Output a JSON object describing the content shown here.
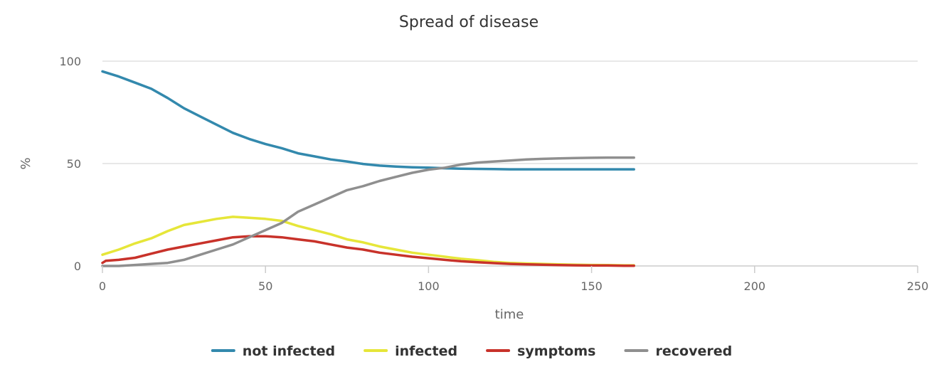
{
  "chart_data": {
    "type": "line",
    "title": "Spread of disease",
    "xlabel": "time",
    "ylabel": "%",
    "xlim": [
      0,
      250
    ],
    "ylim": [
      0,
      100
    ],
    "xticks": [
      0,
      50,
      100,
      150,
      200,
      250
    ],
    "yticks": [
      0,
      50,
      100
    ],
    "grid": "horizontal",
    "legend_position": "bottom",
    "series": [
      {
        "name": "not infected",
        "color": "#3389ad",
        "x": [
          0,
          5,
          10,
          15,
          20,
          25,
          30,
          35,
          40,
          45,
          50,
          55,
          60,
          65,
          70,
          75,
          80,
          85,
          90,
          95,
          100,
          105,
          110,
          115,
          120,
          125,
          130,
          135,
          140,
          145,
          150,
          155,
          160,
          163
        ],
        "y": [
          95,
          92.5,
          89.5,
          86.5,
          82,
          77,
          73,
          69,
          65,
          62,
          59.5,
          57.5,
          55,
          53.5,
          52,
          51,
          49.8,
          49,
          48.5,
          48.2,
          48,
          47.7,
          47.5,
          47.4,
          47.3,
          47.2,
          47.2,
          47.2,
          47.2,
          47.2,
          47.2,
          47.2,
          47.2,
          47.2
        ]
      },
      {
        "name": "infected",
        "color": "#e6e639",
        "x": [
          0,
          5,
          10,
          15,
          20,
          25,
          30,
          35,
          40,
          45,
          50,
          55,
          60,
          65,
          70,
          75,
          80,
          85,
          90,
          95,
          100,
          105,
          110,
          115,
          120,
          125,
          130,
          135,
          140,
          145,
          150,
          155,
          160,
          163
        ],
        "y": [
          5.5,
          8,
          11,
          13.5,
          17,
          20,
          21.5,
          23,
          24,
          23.5,
          23,
          22,
          19.5,
          17.5,
          15.5,
          13,
          11.5,
          9.5,
          8,
          6.5,
          5.5,
          4.5,
          3.5,
          2.8,
          2,
          1.5,
          1.2,
          1,
          0.8,
          0.6,
          0.5,
          0.4,
          0.3,
          0.3
        ]
      },
      {
        "name": "symptoms",
        "color": "#c8322a",
        "x": [
          0,
          1,
          5,
          10,
          15,
          20,
          25,
          30,
          35,
          40,
          45,
          50,
          55,
          60,
          65,
          70,
          75,
          80,
          85,
          90,
          95,
          100,
          105,
          110,
          115,
          120,
          125,
          130,
          135,
          140,
          145,
          150,
          155,
          160,
          163
        ],
        "y": [
          1.5,
          2.5,
          3,
          4,
          6,
          8,
          9.5,
          11,
          12.5,
          14,
          14.5,
          14.5,
          14,
          13,
          12,
          10.5,
          9,
          8,
          6.5,
          5.5,
          4.5,
          3.8,
          3,
          2.3,
          1.8,
          1.4,
          1,
          0.8,
          0.6,
          0.4,
          0.3,
          0.2,
          0.2,
          0.1,
          0.1
        ]
      },
      {
        "name": "recovered",
        "color": "#8f8f8f",
        "x": [
          0,
          5,
          10,
          15,
          20,
          25,
          30,
          35,
          40,
          45,
          50,
          55,
          60,
          65,
          70,
          75,
          80,
          85,
          90,
          95,
          100,
          105,
          110,
          115,
          120,
          125,
          130,
          135,
          140,
          145,
          150,
          155,
          160,
          163
        ],
        "y": [
          0,
          0,
          0.5,
          1,
          1.5,
          3,
          5.5,
          8,
          10.5,
          14,
          17.5,
          21,
          26.5,
          30,
          33.5,
          37,
          39,
          41.5,
          43.5,
          45.5,
          47,
          48,
          49.5,
          50.5,
          51,
          51.5,
          52,
          52.3,
          52.5,
          52.7,
          52.8,
          52.9,
          52.9,
          52.9
        ]
      }
    ]
  }
}
